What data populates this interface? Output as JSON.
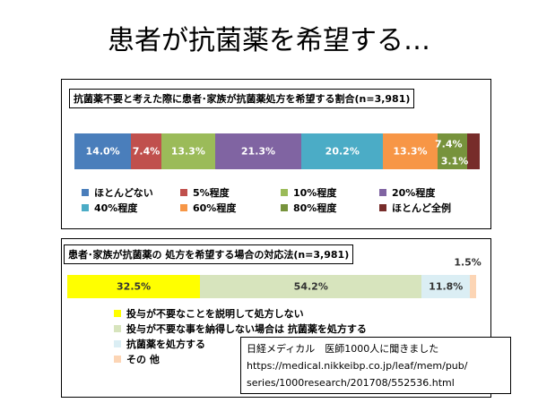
{
  "slide": {
    "title": "患者が抗菌薬を希望する…"
  },
  "chart_data": [
    {
      "type": "bar",
      "orientation": "stacked-horizontal-100",
      "title": "抗菌薬不要と考えた際に患者･家族が抗菌薬処方を希望する割合(n=3,981)",
      "series": [
        {
          "name": "ほとんどない",
          "value": 14.0,
          "label": "14.0%",
          "color": "#4a7ebb"
        },
        {
          "name": "5%程度",
          "value": 7.4,
          "label": "7.4%",
          "color": "#c0504d"
        },
        {
          "name": "10%程度",
          "value": 13.3,
          "label": "13.3%",
          "color": "#9bbb59"
        },
        {
          "name": "20%程度",
          "value": 21.3,
          "label": "21.3%",
          "color": "#8064a2"
        },
        {
          "name": "40%程度",
          "value": 20.2,
          "label": "20.2%",
          "color": "#4bacc6"
        },
        {
          "name": "60%程度",
          "value": 13.3,
          "label": "13.3%",
          "color": "#f79646"
        },
        {
          "name": "80%程度",
          "value": 7.4,
          "label": "7.4%",
          "color": "#77933c"
        },
        {
          "name": "ほとんど全例",
          "value": 3.1,
          "label": "3.1%",
          "color": "#772c2a"
        }
      ],
      "legend": "bottom"
    },
    {
      "type": "bar",
      "orientation": "stacked-horizontal-100",
      "title": "患者･家族が抗菌薬の 処方を希望する場合の対応法(n=3,981)",
      "series": [
        {
          "name": "投与が不要なことを説明して処方しない",
          "value": 32.5,
          "label": "32.5%",
          "color": "#ffff00"
        },
        {
          "name": "投与が不要な事を納得しない場合は 抗菌薬を処方する",
          "value": 54.2,
          "label": "54.2%",
          "color": "#d7e4bd"
        },
        {
          "name": "抗菌薬を処方する",
          "value": 11.8,
          "label": "11.8%",
          "color": "#dbeef4"
        },
        {
          "name": "その 他",
          "value": 1.5,
          "label": "1.5%",
          "color": "#fcd5b5"
        }
      ],
      "legend": "bottom"
    }
  ],
  "source": {
    "line1": "日経メディカル　医師1000人に聞きました",
    "line2": "https://medical.nikkeibp.co.jp/leaf/mem/pub/",
    "line3": "series/1000research/201708/552536.html"
  }
}
